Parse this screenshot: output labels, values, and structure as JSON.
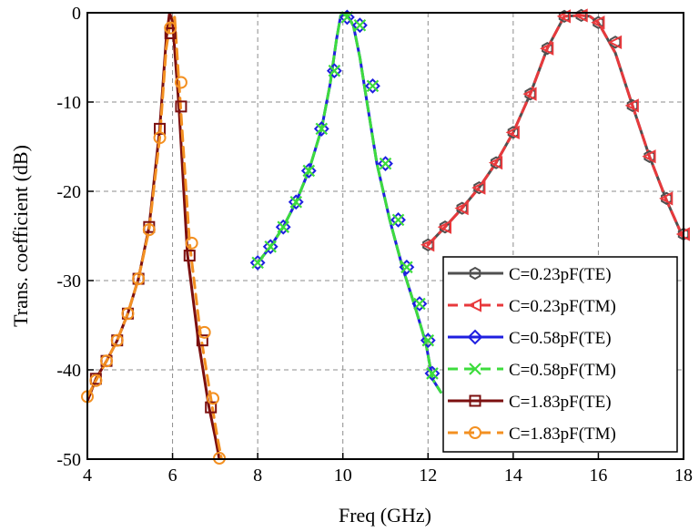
{
  "chart_data": {
    "type": "line",
    "title": "",
    "xlabel": "Freq (GHz)",
    "ylabel": "Trans. coefficient (dB)",
    "xlim": [
      4,
      18
    ],
    "ylim": [
      -50,
      0
    ],
    "xticks": [
      "4",
      "6",
      "8",
      "10",
      "12",
      "14",
      "16",
      "18"
    ],
    "yticks": [
      "0",
      "-10",
      "-20",
      "-30",
      "-40",
      "-50"
    ],
    "grid": true,
    "legend_position": "bottom-right",
    "series": [
      {
        "name": "C=0.23pF(TE)",
        "color": "#505050",
        "dash": false,
        "marker": "hexagon",
        "points": [
          [
            12.0,
            -26.0
          ],
          [
            12.4,
            -24.0
          ],
          [
            12.8,
            -21.9
          ],
          [
            13.2,
            -19.6
          ],
          [
            13.6,
            -16.8
          ],
          [
            14.0,
            -13.4
          ],
          [
            14.4,
            -9.1
          ],
          [
            14.8,
            -4.0
          ],
          [
            15.2,
            -0.4
          ],
          [
            15.6,
            -0.3
          ],
          [
            15.8,
            -0.4
          ],
          [
            16.0,
            -1.1
          ],
          [
            16.4,
            -4.5
          ],
          [
            16.8,
            -10.4
          ],
          [
            17.2,
            -16.1
          ],
          [
            17.6,
            -21.0
          ],
          [
            18.0,
            -25.3
          ],
          [
            18.2,
            -27.8
          ]
        ],
        "marker_points": [
          [
            12.0,
            -26.0
          ],
          [
            12.4,
            -24.0
          ],
          [
            12.8,
            -21.9
          ],
          [
            13.2,
            -19.6
          ],
          [
            13.6,
            -16.8
          ],
          [
            14.0,
            -13.4
          ],
          [
            14.4,
            -9.1
          ],
          [
            14.8,
            -4.0
          ],
          [
            15.2,
            -0.4
          ],
          [
            15.6,
            -0.3
          ],
          [
            16.0,
            -1.1
          ],
          [
            16.4,
            -3.3
          ],
          [
            16.8,
            -10.4
          ],
          [
            17.2,
            -16.1
          ],
          [
            17.6,
            -20.8
          ],
          [
            18.0,
            -24.8
          ]
        ]
      },
      {
        "name": "C=0.23pF(TM)",
        "color": "#e8393c",
        "dash": true,
        "marker": "triangle-left",
        "points": [
          [
            12.0,
            -26.0
          ],
          [
            12.4,
            -24.0
          ],
          [
            12.8,
            -21.9
          ],
          [
            13.2,
            -19.6
          ],
          [
            13.6,
            -16.8
          ],
          [
            14.0,
            -13.4
          ],
          [
            14.4,
            -9.1
          ],
          [
            14.8,
            -4.0
          ],
          [
            15.2,
            -0.4
          ],
          [
            15.6,
            -0.3
          ],
          [
            15.8,
            -0.4
          ],
          [
            16.0,
            -1.1
          ],
          [
            16.4,
            -4.5
          ],
          [
            16.8,
            -10.4
          ],
          [
            17.2,
            -16.1
          ],
          [
            17.6,
            -21.0
          ],
          [
            18.0,
            -25.3
          ],
          [
            18.2,
            -27.8
          ]
        ],
        "marker_points": [
          [
            12.0,
            -26.0
          ],
          [
            12.4,
            -24.0
          ],
          [
            12.8,
            -21.9
          ],
          [
            13.2,
            -19.6
          ],
          [
            13.6,
            -16.8
          ],
          [
            14.0,
            -13.4
          ],
          [
            14.4,
            -9.1
          ],
          [
            14.8,
            -4.0
          ],
          [
            15.2,
            -0.4
          ],
          [
            15.6,
            -0.3
          ],
          [
            16.0,
            -1.1
          ],
          [
            16.4,
            -3.3
          ],
          [
            16.8,
            -10.4
          ],
          [
            17.2,
            -16.1
          ],
          [
            17.6,
            -20.8
          ],
          [
            18.0,
            -24.8
          ]
        ]
      },
      {
        "name": "C=0.58pF(TE)",
        "color": "#1f1fe0",
        "dash": false,
        "marker": "diamond",
        "points": [
          [
            8.0,
            -28.0
          ],
          [
            8.3,
            -26.2
          ],
          [
            8.6,
            -24.0
          ],
          [
            8.9,
            -21.2
          ],
          [
            9.2,
            -17.7
          ],
          [
            9.5,
            -13.0
          ],
          [
            9.7,
            -8.0
          ],
          [
            9.85,
            -3.0
          ],
          [
            9.95,
            -0.3
          ],
          [
            10.1,
            -0.2
          ],
          [
            10.25,
            -1.5
          ],
          [
            10.4,
            -5.0
          ],
          [
            10.55,
            -9.5
          ],
          [
            10.8,
            -16.9
          ],
          [
            11.1,
            -23.2
          ],
          [
            11.4,
            -28.5
          ],
          [
            11.7,
            -33.0
          ],
          [
            11.95,
            -37.0
          ],
          [
            12.1,
            -41.0
          ],
          [
            12.3,
            -42.5
          ]
        ],
        "marker_points": [
          [
            8.0,
            -28.0
          ],
          [
            8.3,
            -26.2
          ],
          [
            8.6,
            -24.0
          ],
          [
            8.9,
            -21.2
          ],
          [
            9.2,
            -17.7
          ],
          [
            9.5,
            -13.0
          ],
          [
            9.8,
            -6.5
          ],
          [
            10.1,
            -0.5
          ],
          [
            10.4,
            -1.4
          ],
          [
            10.7,
            -8.2
          ],
          [
            11.0,
            -16.9
          ],
          [
            11.3,
            -23.2
          ],
          [
            11.5,
            -28.5
          ],
          [
            11.8,
            -32.6
          ],
          [
            12.0,
            -36.7
          ],
          [
            12.1,
            -40.4
          ]
        ]
      },
      {
        "name": "C=0.58pF(TM)",
        "color": "#3ddc3d",
        "dash": true,
        "marker": "x",
        "points": [
          [
            8.0,
            -28.0
          ],
          [
            8.3,
            -26.2
          ],
          [
            8.6,
            -24.0
          ],
          [
            8.9,
            -21.2
          ],
          [
            9.2,
            -17.7
          ],
          [
            9.5,
            -13.0
          ],
          [
            9.7,
            -8.0
          ],
          [
            9.85,
            -3.0
          ],
          [
            9.95,
            -0.3
          ],
          [
            10.1,
            -0.2
          ],
          [
            10.25,
            -1.5
          ],
          [
            10.4,
            -5.0
          ],
          [
            10.55,
            -9.5
          ],
          [
            10.8,
            -16.9
          ],
          [
            11.1,
            -23.2
          ],
          [
            11.4,
            -28.5
          ],
          [
            11.7,
            -33.0
          ],
          [
            11.95,
            -37.0
          ],
          [
            12.1,
            -41.0
          ],
          [
            12.3,
            -42.5
          ]
        ],
        "marker_points": [
          [
            8.0,
            -28.0
          ],
          [
            8.3,
            -26.2
          ],
          [
            8.6,
            -24.0
          ],
          [
            8.9,
            -21.2
          ],
          [
            9.2,
            -17.7
          ],
          [
            9.5,
            -13.0
          ],
          [
            9.8,
            -6.5
          ],
          [
            10.1,
            -0.5
          ],
          [
            10.4,
            -1.4
          ],
          [
            10.7,
            -8.2
          ],
          [
            11.0,
            -16.9
          ],
          [
            11.3,
            -23.2
          ],
          [
            11.5,
            -28.5
          ],
          [
            11.8,
            -32.6
          ],
          [
            12.0,
            -36.7
          ],
          [
            12.1,
            -40.4
          ]
        ]
      },
      {
        "name": "C=1.83pF(TE)",
        "color": "#7b0f0f",
        "dash": false,
        "marker": "square",
        "points": [
          [
            4.0,
            -43.5
          ],
          [
            4.2,
            -41.0
          ],
          [
            4.45,
            -39.0
          ],
          [
            4.7,
            -36.7
          ],
          [
            4.95,
            -33.7
          ],
          [
            5.2,
            -29.8
          ],
          [
            5.45,
            -24.0
          ],
          [
            5.7,
            -13.0
          ],
          [
            5.85,
            -3.0
          ],
          [
            5.93,
            0.0
          ],
          [
            6.0,
            -1.0
          ],
          [
            6.15,
            -10.5
          ],
          [
            6.35,
            -27.0
          ],
          [
            6.6,
            -36.5
          ],
          [
            6.85,
            -44.0
          ],
          [
            7.0,
            -47.5
          ],
          [
            7.1,
            -50.0
          ]
        ],
        "marker_points": [
          [
            4.2,
            -41.0
          ],
          [
            4.45,
            -39.0
          ],
          [
            4.7,
            -36.7
          ],
          [
            4.95,
            -33.7
          ],
          [
            5.2,
            -29.8
          ],
          [
            5.45,
            -24.0
          ],
          [
            5.7,
            -13.0
          ],
          [
            5.95,
            -2.3
          ],
          [
            6.2,
            -10.5
          ],
          [
            6.4,
            -27.2
          ],
          [
            6.7,
            -36.7
          ],
          [
            6.9,
            -44.2
          ]
        ]
      },
      {
        "name": "C=1.83pF(TM)",
        "color": "#f39021",
        "dash": true,
        "marker": "circle",
        "points": [
          [
            4.0,
            -43.0
          ],
          [
            4.2,
            -41.2
          ],
          [
            4.45,
            -39.0
          ],
          [
            4.7,
            -36.7
          ],
          [
            4.95,
            -33.7
          ],
          [
            5.2,
            -29.8
          ],
          [
            5.45,
            -24.3
          ],
          [
            5.7,
            -14.0
          ],
          [
            5.85,
            -4.0
          ],
          [
            5.95,
            -1.0
          ],
          [
            6.05,
            -0.5
          ],
          [
            6.15,
            -7.8
          ],
          [
            6.4,
            -25.8
          ],
          [
            6.65,
            -35.8
          ],
          [
            6.9,
            -43.2
          ],
          [
            7.05,
            -47.5
          ],
          [
            7.15,
            -50.0
          ]
        ],
        "marker_points": [
          [
            4.0,
            -43.0
          ],
          [
            4.2,
            -41.2
          ],
          [
            4.45,
            -39.0
          ],
          [
            4.7,
            -36.7
          ],
          [
            4.95,
            -33.7
          ],
          [
            5.2,
            -29.8
          ],
          [
            5.45,
            -24.3
          ],
          [
            5.7,
            -14.0
          ],
          [
            5.95,
            -1.7
          ],
          [
            6.2,
            -7.8
          ],
          [
            6.45,
            -25.8
          ],
          [
            6.75,
            -35.8
          ],
          [
            6.95,
            -43.2
          ],
          [
            7.1,
            -49.9
          ]
        ]
      }
    ]
  }
}
